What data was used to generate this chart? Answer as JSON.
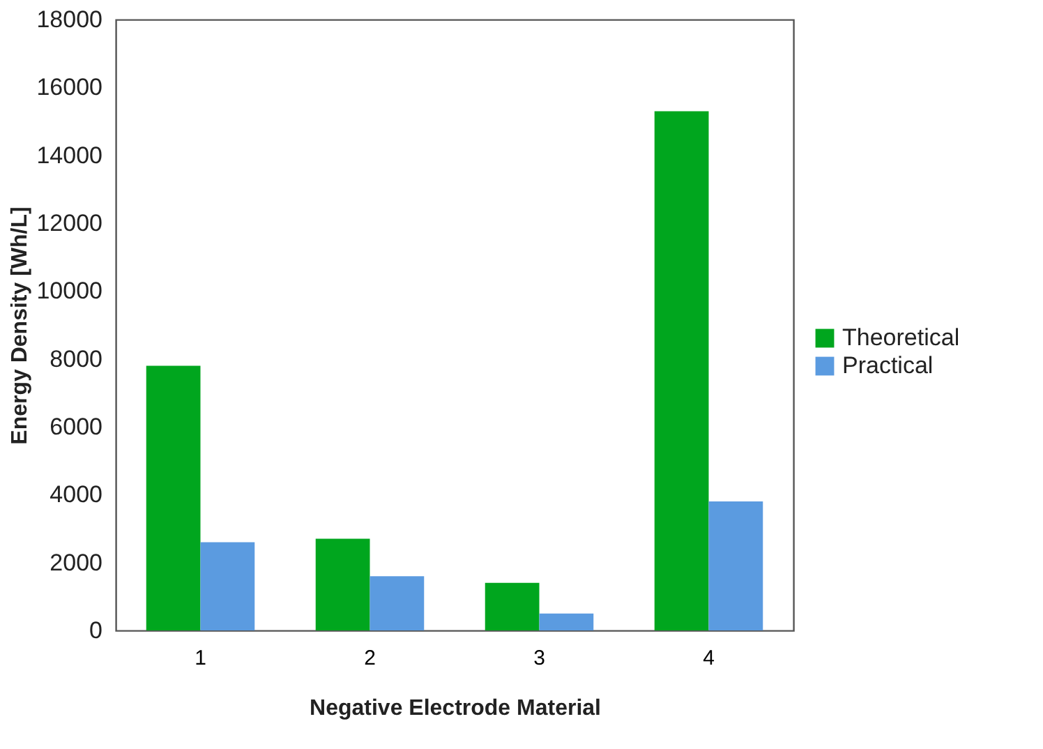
{
  "chart_data": {
    "type": "bar",
    "xlabel": "Negative Electrode Material",
    "ylabel": "Energy Density [Wh/L]",
    "categories": [
      "1",
      "2",
      "3",
      "4"
    ],
    "series": [
      {
        "name": "Theoretical",
        "color": "#00a61e",
        "values": [
          7800,
          2700,
          1400,
          15300
        ]
      },
      {
        "name": "Practical",
        "color": "#5b9be0",
        "values": [
          2600,
          1600,
          500,
          3800
        ]
      }
    ],
    "ylim": [
      0,
      18000
    ],
    "yticks": [
      0,
      2000,
      4000,
      6000,
      8000,
      10000,
      12000,
      14000,
      16000,
      18000
    ],
    "grid": false,
    "legend": "right"
  }
}
